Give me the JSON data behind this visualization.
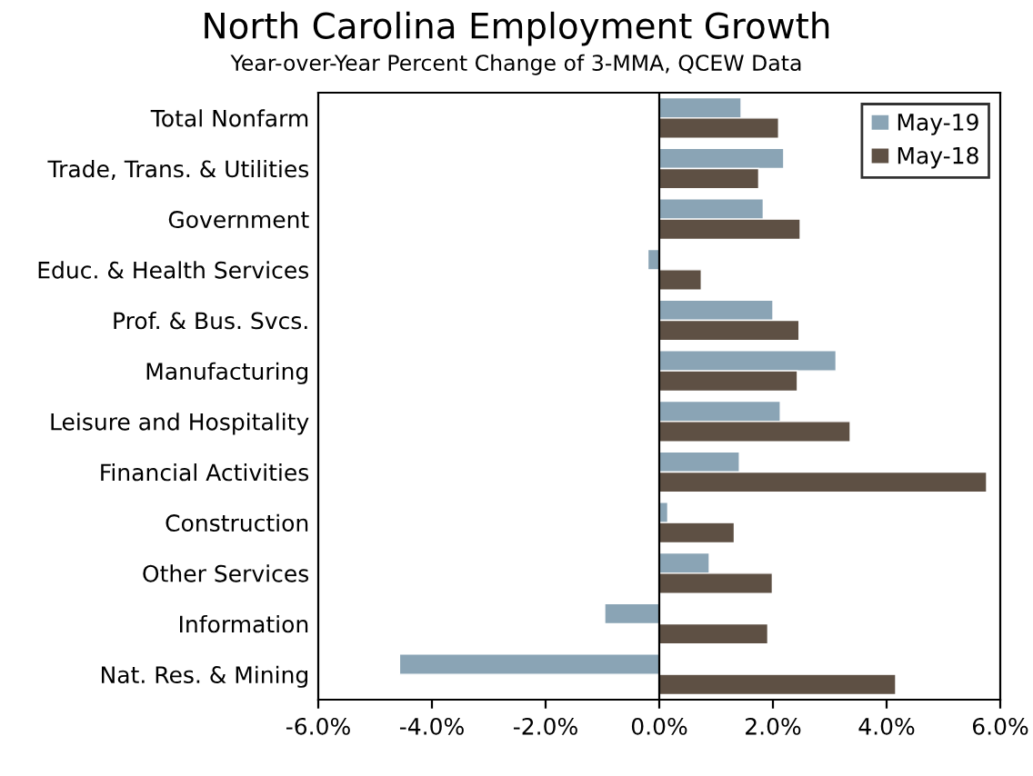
{
  "chart_data": {
    "type": "bar",
    "orientation": "horizontal",
    "title": "North Carolina Employment Growth",
    "subtitle": "Year-over-Year Percent Change of 3-MMA, QCEW Data",
    "categories": [
      "Total Nonfarm",
      "Trade, Trans. & Utilities",
      "Government",
      "Educ. & Health Services",
      "Prof. & Bus. Svcs.",
      "Manufacturing",
      "Leisure and Hospitality",
      "Financial Activities",
      "Construction",
      "Other Services",
      "Information",
      "Nat. Res. & Mining"
    ],
    "series": [
      {
        "name": "May-19",
        "color": "#8aa4b5",
        "values": [
          1.44,
          2.19,
          1.83,
          -0.2,
          2.0,
          3.11,
          2.13,
          1.41,
          0.15,
          0.88,
          -0.96,
          -4.57
        ]
      },
      {
        "name": "May-18",
        "color": "#5e5044",
        "values": [
          2.1,
          1.75,
          2.48,
          0.74,
          2.46,
          2.43,
          3.36,
          5.76,
          1.32,
          1.99,
          1.91,
          4.16
        ]
      }
    ],
    "xlim": [
      -6,
      6
    ],
    "xticks": [
      {
        "value": -6,
        "label": "-6.0%"
      },
      {
        "value": -4,
        "label": "-4.0%"
      },
      {
        "value": -2,
        "label": "-2.0%"
      },
      {
        "value": 0,
        "label": "0.0%"
      },
      {
        "value": 2,
        "label": "2.0%"
      },
      {
        "value": 4,
        "label": "4.0%"
      },
      {
        "value": 6,
        "label": "6.0%"
      }
    ],
    "ref_lines": [
      {
        "axis": "x",
        "value": 0,
        "color": "#000000"
      }
    ],
    "grid": false,
    "legend": "top right"
  }
}
